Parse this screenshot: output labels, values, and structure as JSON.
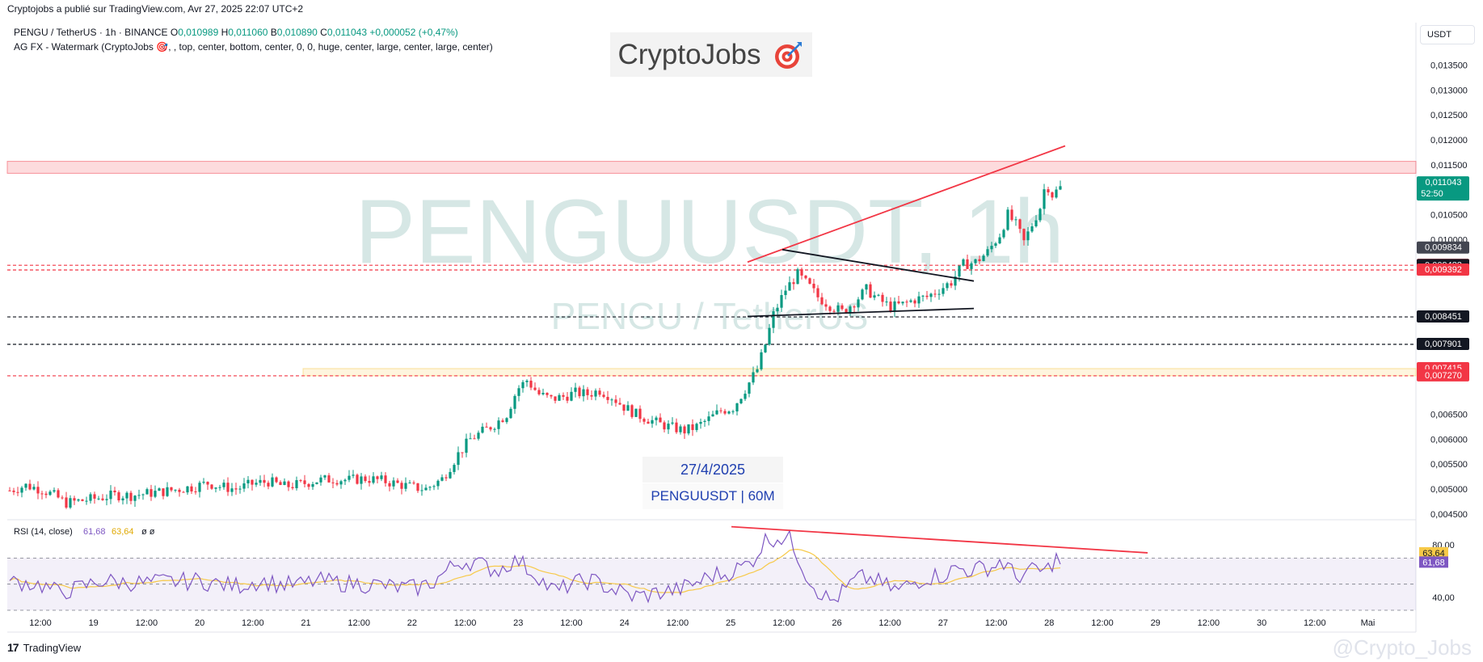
{
  "header": {
    "published": "Cryptojobs a publié sur TradingView.com, Avr 27, 2025 22:07 UTC+2",
    "symbol": "PENGU / TetherUS · 1h · BINANCE",
    "ohlc": [
      {
        "k": "O",
        "v": "0,010989"
      },
      {
        "k": "H",
        "v": "0,011060"
      },
      {
        "k": "B",
        "v": "0,010890"
      },
      {
        "k": "C",
        "v": "0,011043"
      }
    ],
    "change": "+0,000052 (+0,47%)",
    "indicator": "AG FX - Watermark (CryptoJobs 🎯, , top, center, bottom, center, 0, 0, huge, center, large, center, large, center)"
  },
  "brand": {
    "text": "CryptoJobs",
    "icon": "target-icon"
  },
  "watermark": {
    "symbol": "PENGUUSDT, 1h",
    "pair": "PENGU / TetherUS"
  },
  "overlay": {
    "date": "27/4/2025",
    "pair_label": "PENGUUSDT | 60M"
  },
  "currency_button": "USDT",
  "footer": {
    "brand": "TradingView",
    "handle": "@Crypto_Jobs"
  },
  "colors": {
    "up": "#089981",
    "down": "#f23645",
    "rsi": "#7e57c2",
    "rsi_ma": "#f7c948",
    "trend": "#f23645"
  },
  "chart_data": {
    "type": "candlestick",
    "ylim": [
      0.0044,
      0.0138
    ],
    "y_ticks": [
      "0,013500",
      "0,013000",
      "0,012500",
      "0,012000",
      "0,011500",
      "0,010500",
      "0,010000",
      "0,006500",
      "0,006000",
      "0,005500",
      "0,005000",
      "0,004500"
    ],
    "x_labels": [
      "12:00",
      "19",
      "12:00",
      "20",
      "12:00",
      "21",
      "12:00",
      "22",
      "12:00",
      "23",
      "12:00",
      "24",
      "12:00",
      "25",
      "12:00",
      "26",
      "12:00",
      "27",
      "12:00",
      "28",
      "12:00",
      "29",
      "12:00",
      "30",
      "12:00",
      "Mai"
    ],
    "price_badges": [
      {
        "value": "0,011043",
        "sub": "52:50",
        "color": "#089981"
      },
      {
        "value": "0,009834",
        "color": "#434651"
      },
      {
        "value": "0,009486",
        "color": "#f23645"
      },
      {
        "value": "0,009482",
        "color": "#131722"
      },
      {
        "value": "0,009392",
        "color": "#f23645"
      },
      {
        "value": "0,008451",
        "color": "#131722"
      },
      {
        "value": "0,007901",
        "color": "#131722"
      },
      {
        "value": "0,007415",
        "color": "#f23645"
      },
      {
        "value": "0,007270",
        "color": "#f23645"
      }
    ],
    "levels": [
      {
        "price": 0.009486,
        "style": "dashed",
        "color": "#f23645"
      },
      {
        "price": 0.009392,
        "style": "dashed",
        "color": "#f23645"
      },
      {
        "price": 0.008451,
        "style": "dashed",
        "color": "#131722"
      },
      {
        "price": 0.007901,
        "style": "dashed",
        "color": "#131722"
      },
      {
        "price": 0.00727,
        "style": "dashed",
        "color": "#f23645"
      }
    ],
    "zones": [
      {
        "from": 0.01133,
        "to": 0.01157,
        "color": "#f23645"
      },
      {
        "from": 0.00727,
        "to": 0.007415,
        "color": "#f7c948"
      }
    ],
    "trendlines": [
      {
        "from": [
          "25 12:00",
          0.00955
        ],
        "to": [
          "28 00:00",
          0.01188
        ],
        "color": "#f23645"
      },
      {
        "from": [
          "25 13:00",
          0.0098
        ],
        "to": [
          "27 12:00",
          0.00917
        ],
        "color": "#131722"
      },
      {
        "from": [
          "25 12:00",
          0.00846
        ],
        "to": [
          "27 12:00",
          0.00862
        ],
        "color": "#131722"
      }
    ],
    "close_path": [
      [
        0,
        0.00497
      ],
      [
        20,
        0.00507
      ],
      [
        40,
        0.00499
      ],
      [
        55,
        0.00487
      ],
      [
        70,
        0.00472
      ],
      [
        90,
        0.00477
      ],
      [
        110,
        0.00482
      ],
      [
        130,
        0.00488
      ],
      [
        150,
        0.00487
      ],
      [
        170,
        0.00491
      ],
      [
        190,
        0.00495
      ],
      [
        210,
        0.005
      ],
      [
        230,
        0.00505
      ],
      [
        245,
        0.00512
      ],
      [
        260,
        0.00505
      ],
      [
        280,
        0.005
      ],
      [
        300,
        0.0051
      ],
      [
        320,
        0.00515
      ],
      [
        340,
        0.00505
      ],
      [
        360,
        0.0051
      ],
      [
        380,
        0.00517
      ],
      [
        400,
        0.0052
      ],
      [
        420,
        0.00518
      ],
      [
        440,
        0.00521
      ],
      [
        460,
        0.00517
      ],
      [
        480,
        0.0051
      ],
      [
        500,
        0.00503
      ],
      [
        515,
        0.005
      ],
      [
        535,
        0.0052
      ],
      [
        555,
        0.0057
      ],
      [
        570,
        0.006
      ],
      [
        585,
        0.00615
      ],
      [
        600,
        0.0063
      ],
      [
        615,
        0.0065
      ],
      [
        628,
        0.007
      ],
      [
        640,
        0.00718
      ],
      [
        655,
        0.0069
      ],
      [
        670,
        0.0068
      ],
      [
        685,
        0.00685
      ],
      [
        700,
        0.00693
      ],
      [
        715,
        0.0069
      ],
      [
        730,
        0.00698
      ],
      [
        745,
        0.00685
      ],
      [
        760,
        0.00665
      ],
      [
        775,
        0.0065
      ],
      [
        790,
        0.0064
      ],
      [
        805,
        0.0063
      ],
      [
        820,
        0.00623
      ],
      [
        835,
        0.00617
      ],
      [
        850,
        0.00625
      ],
      [
        865,
        0.0064
      ],
      [
        880,
        0.00657
      ],
      [
        895,
        0.00663
      ],
      [
        910,
        0.007
      ],
      [
        925,
        0.0074
      ],
      [
        935,
        0.0079
      ],
      [
        945,
        0.0085
      ],
      [
        960,
        0.009
      ],
      [
        975,
        0.0093
      ],
      [
        990,
        0.00905
      ],
      [
        1000,
        0.00885
      ],
      [
        1015,
        0.00868
      ],
      [
        1030,
        0.00855
      ],
      [
        1045,
        0.00875
      ],
      [
        1060,
        0.009
      ],
      [
        1075,
        0.0088
      ],
      [
        1090,
        0.00865
      ],
      [
        1105,
        0.0087
      ],
      [
        1120,
        0.0088
      ],
      [
        1135,
        0.00885
      ],
      [
        1150,
        0.009
      ],
      [
        1165,
        0.00915
      ],
      [
        1180,
        0.0095
      ],
      [
        1195,
        0.00955
      ],
      [
        1210,
        0.00975
      ],
      [
        1225,
        0.0101
      ],
      [
        1235,
        0.0105
      ],
      [
        1245,
        0.0103
      ],
      [
        1255,
        0.00995
      ],
      [
        1265,
        0.0103
      ],
      [
        1275,
        0.01065
      ],
      [
        1282,
        0.01115
      ],
      [
        1290,
        0.0109
      ],
      [
        1300,
        0.01104
      ]
    ],
    "rsi": {
      "label": "RSI (14, close)",
      "value": "61,68",
      "ma_value": "63,64",
      "extra": "ø ø",
      "ticks": [
        "80,00",
        "40,00"
      ],
      "ylim": [
        30,
        95
      ],
      "trendline": {
        "from": [
          905,
          94
        ],
        "to": [
          1420,
          74
        ]
      }
    }
  }
}
